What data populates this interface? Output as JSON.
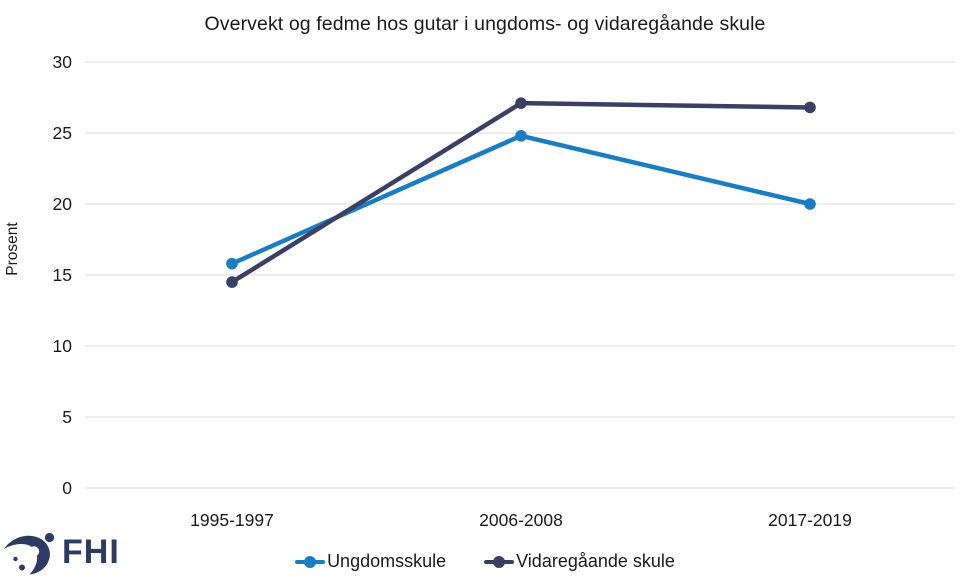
{
  "page": {
    "background": "#ffffff",
    "text_color": "#1a1a1a",
    "gridline_color": "#e2e2e2"
  },
  "chart_data": {
    "type": "line",
    "title": "Overvekt og fedme hos gutar i ungdoms- og vidaregåande skule",
    "xlabel": "",
    "ylabel": "Prosent",
    "categories": [
      "1995-1997",
      "2006-2008",
      "2017-2019"
    ],
    "series": [
      {
        "name": "Ungdomsskule",
        "color": "#1b7dc1",
        "values": [
          15.8,
          24.8,
          20.0
        ]
      },
      {
        "name": "Vidaregåande skule",
        "color": "#3a3f63",
        "values": [
          14.5,
          27.1,
          26.8
        ]
      }
    ],
    "ylim": [
      0,
      30
    ],
    "ytick_step": 5,
    "yticks": [
      0,
      5,
      10,
      15,
      20,
      25,
      30
    ],
    "grid": true,
    "legend_position": "bottom"
  },
  "footer": {
    "logo_text": "FHI",
    "logo_color": "#2c3a64"
  }
}
